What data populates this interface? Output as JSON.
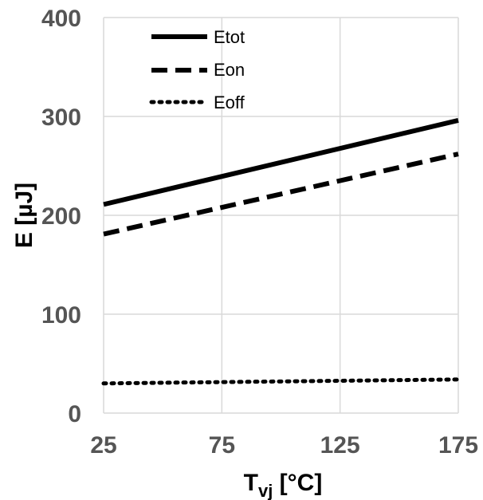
{
  "chart_data": {
    "type": "line",
    "x": [
      25,
      175
    ],
    "xlim": [
      25,
      175
    ],
    "ylim": [
      0,
      400
    ],
    "xticks": [
      "25",
      "75",
      "125",
      "175"
    ],
    "yticks": [
      "0",
      "100",
      "200",
      "300",
      "400"
    ],
    "xlabel_main": "T",
    "xlabel_sub": "vj",
    "xlabel_unit": " [°C]",
    "ylabel": "E  [µJ]",
    "grid": true,
    "legend_position": "top-left",
    "series": [
      {
        "name": "Etot",
        "style": "solid",
        "x": [
          25,
          175
        ],
        "values": [
          211,
          296
        ]
      },
      {
        "name": "Eon",
        "style": "dashed",
        "x": [
          25,
          175
        ],
        "values": [
          181,
          262
        ]
      },
      {
        "name": "Eoff",
        "style": "dotted",
        "x": [
          25,
          175
        ],
        "values": [
          30,
          34
        ]
      }
    ],
    "colors": {
      "line": "#000000",
      "grid": "#d9d9d9",
      "tick_text": "#555555"
    }
  }
}
